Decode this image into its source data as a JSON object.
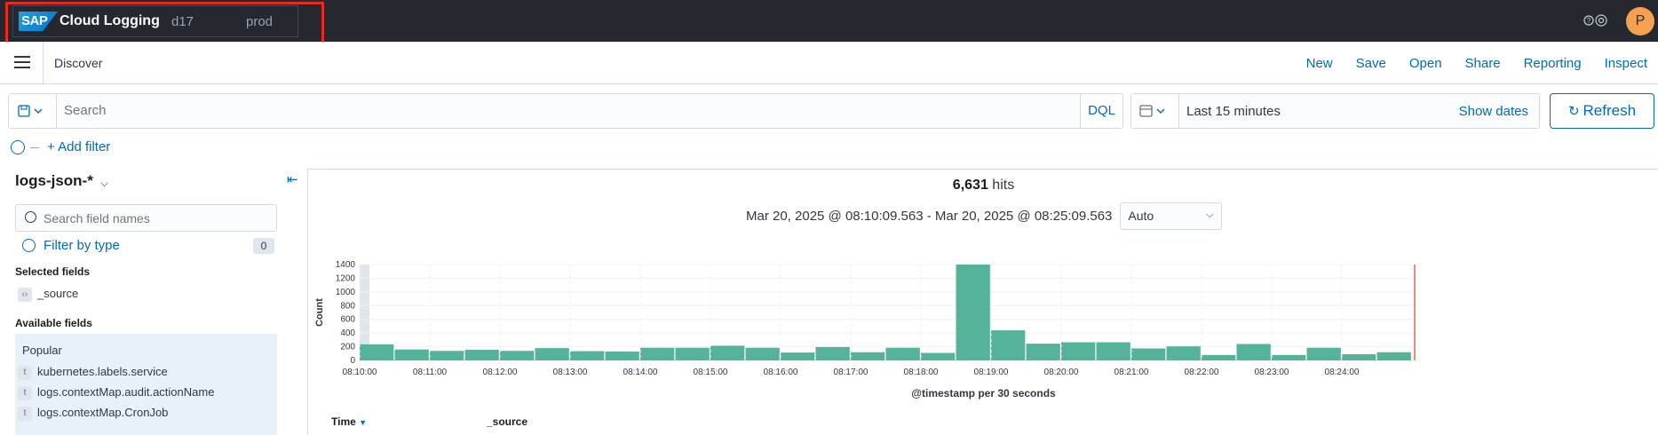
{
  "header": {
    "logo_text": "SAP",
    "app_title": "Cloud Logging",
    "environment": "d17",
    "stage": "prod",
    "help_icon": "help-icon",
    "avatar_initial": "P"
  },
  "nav": {
    "title": "Discover",
    "links": [
      "New",
      "Save",
      "Open",
      "Share",
      "Reporting",
      "Inspect"
    ]
  },
  "query": {
    "placeholder": "Search",
    "language": "DQL",
    "time_range": "Last 15 minutes",
    "show_dates": "Show dates",
    "refresh": "Refresh",
    "add_filter": "+ Add filter"
  },
  "sidebar": {
    "index_pattern": "logs-json-*",
    "search_placeholder": "Search field names",
    "filter_by_type": "Filter by type",
    "filter_count": "0",
    "selected_title": "Selected fields",
    "selected_fields": [
      "_source"
    ],
    "available_title": "Available fields",
    "popular_title": "Popular",
    "popular_fields": [
      "kubernetes.labels.service",
      "logs.contextMap.audit.actionName",
      "logs.contextMap.CronJob"
    ]
  },
  "main": {
    "hits_count": "6,631",
    "hits_label": "hits",
    "date_range": "Mar 20, 2025 @ 08:10:09.563 - Mar 20, 2025 @ 08:25:09.563",
    "interval": "Auto",
    "columns": [
      "Time",
      "_source"
    ]
  },
  "chart_data": {
    "type": "bar",
    "ylabel": "Count",
    "xlabel": "@timestamp per 30 seconds",
    "ylim": [
      0,
      1400
    ],
    "y_ticks": [
      "0",
      "200",
      "400",
      "600",
      "800",
      "1000",
      "1200",
      "1400"
    ],
    "x_ticks": [
      "08:10:00",
      "08:11:00",
      "08:12:00",
      "08:13:00",
      "08:14:00",
      "08:15:00",
      "08:16:00",
      "08:17:00",
      "08:18:00",
      "08:19:00",
      "08:20:00",
      "08:21:00",
      "08:22:00",
      "08:23:00",
      "08:24:00"
    ],
    "values": [
      235,
      160,
      140,
      155,
      140,
      180,
      135,
      130,
      185,
      185,
      215,
      185,
      115,
      195,
      120,
      185,
      110,
      1400,
      440,
      245,
      265,
      265,
      175,
      205,
      80,
      240,
      80,
      185,
      90,
      120
    ],
    "bar_color": "#54b399"
  }
}
